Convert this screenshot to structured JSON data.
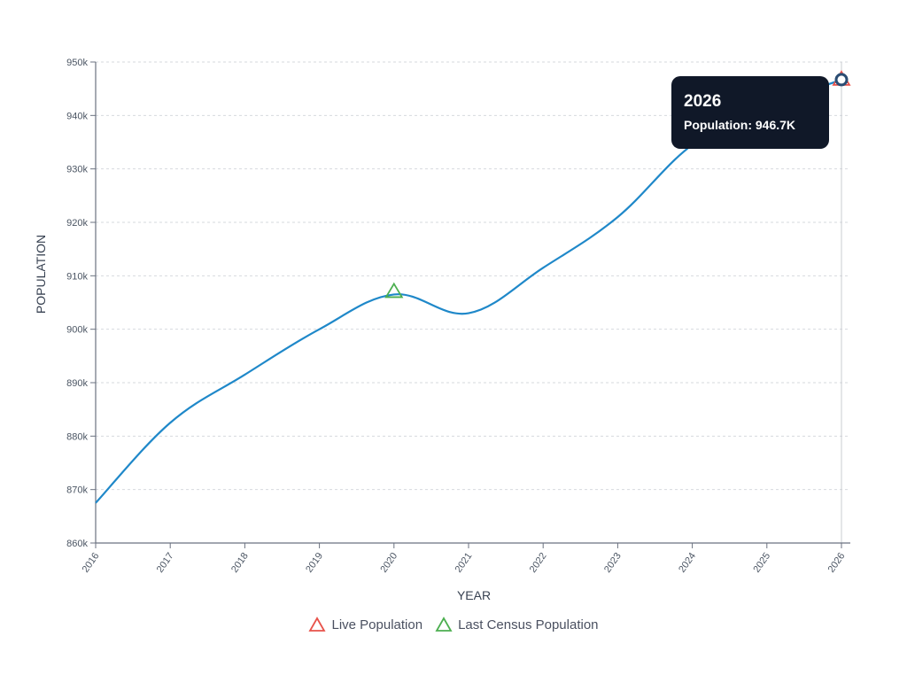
{
  "chart_data": {
    "type": "line",
    "xlabel": "YEAR",
    "ylabel": "POPULATION",
    "x": [
      "2016",
      "2017",
      "2018",
      "2019",
      "2020",
      "2021",
      "2022",
      "2023",
      "2024",
      "2025",
      "2026"
    ],
    "ylim": [
      860000,
      950000
    ],
    "yticks": [
      "860k",
      "870k",
      "880k",
      "890k",
      "900k",
      "910k",
      "920k",
      "930k",
      "940k",
      "950k"
    ],
    "grid": true,
    "legend_position": "bottom",
    "series": [
      {
        "name": "Population",
        "color": "#1f88c9",
        "values": [
          867500,
          882500,
          891500,
          900000,
          906500,
          903000,
          911500,
          921000,
          934500,
          941500,
          946700
        ]
      }
    ],
    "markers": [
      {
        "name": "Live Population",
        "x": "2026",
        "y": 946700,
        "color": "#e8524a",
        "shape": "triangle"
      },
      {
        "name": "Last Census Population",
        "x": "2020",
        "y": 907000,
        "color": "#4caf50",
        "shape": "triangle"
      }
    ],
    "tooltip": {
      "title": "2026",
      "label": "Population: 946.7K",
      "x": "2026"
    }
  },
  "legend": {
    "items": [
      {
        "label": "Live Population",
        "color": "#e8524a",
        "icon": "triangle-outline-icon"
      },
      {
        "label": "Last Census Population",
        "color": "#4caf50",
        "icon": "triangle-outline-icon"
      }
    ]
  }
}
